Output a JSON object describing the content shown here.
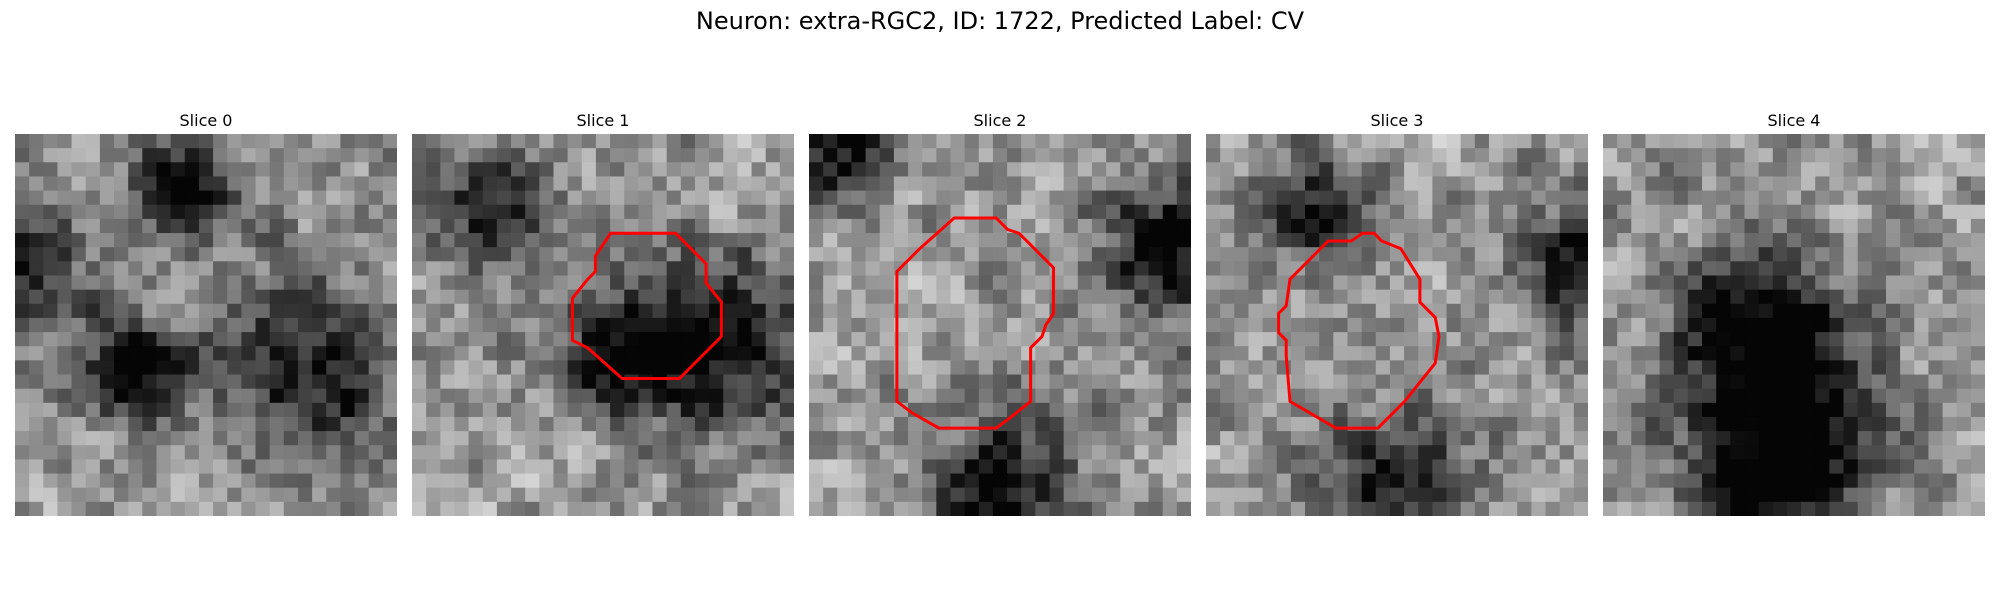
{
  "figure": {
    "title": "Neuron: extra-RGC2, ID: 1722, Predicted Label: CV",
    "contour_color": "#ff0000"
  },
  "panels": [
    {
      "title": "Slice 0",
      "has_contour": false,
      "seed": 11,
      "dark_spots": [
        [
          0.78,
          0.62,
          0.18
        ],
        [
          0.3,
          0.62,
          0.1
        ],
        [
          0.0,
          0.35,
          0.12
        ],
        [
          0.45,
          0.15,
          0.1
        ]
      ]
    },
    {
      "title": "Slice 1",
      "has_contour": true,
      "seed": 23,
      "dark_spots": [
        [
          0.85,
          0.55,
          0.16
        ],
        [
          0.2,
          0.2,
          0.1
        ],
        [
          0.55,
          0.58,
          0.12
        ]
      ]
    },
    {
      "title": "Slice 2",
      "has_contour": true,
      "seed": 37,
      "dark_spots": [
        [
          0.95,
          0.3,
          0.14
        ],
        [
          0.5,
          0.95,
          0.15
        ],
        [
          0.05,
          0.05,
          0.1
        ]
      ]
    },
    {
      "title": "Slice 3",
      "has_contour": true,
      "seed": 41,
      "dark_spots": [
        [
          0.5,
          0.92,
          0.15
        ],
        [
          1.0,
          0.35,
          0.12
        ],
        [
          0.3,
          0.2,
          0.1
        ]
      ]
    },
    {
      "title": "Slice 4",
      "has_contour": false,
      "seed": 59,
      "dark_spots": [
        [
          0.38,
          0.5,
          0.14
        ],
        [
          0.5,
          0.75,
          0.18
        ],
        [
          0.4,
          0.95,
          0.12
        ]
      ]
    }
  ]
}
